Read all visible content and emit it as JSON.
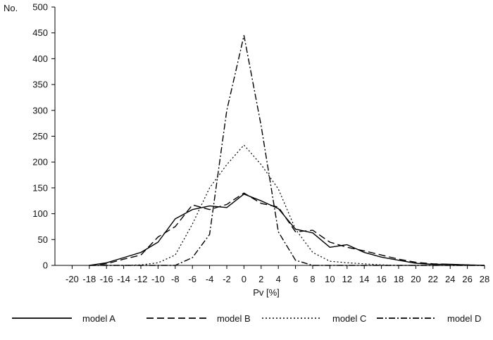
{
  "chart_data": {
    "type": "line",
    "ylabel": "No.",
    "xlabel": "Pv [%]",
    "xlim": [
      -22,
      28
    ],
    "ylim": [
      0,
      500
    ],
    "x_ticks": [
      -20,
      -18,
      -16,
      -14,
      -12,
      -10,
      -8,
      -6,
      -4,
      -2,
      0,
      2,
      4,
      6,
      8,
      10,
      12,
      14,
      16,
      18,
      20,
      22,
      24,
      26,
      28
    ],
    "y_ticks": [
      0,
      50,
      100,
      150,
      200,
      250,
      300,
      350,
      400,
      450,
      500
    ],
    "grid": false,
    "legend_position": "bottom",
    "series": [
      {
        "name": "model A",
        "line_style": "solid",
        "x": [
          -18,
          -16,
          -14,
          -12,
          -10,
          -8,
          -6,
          -4,
          -2,
          0,
          2,
          4,
          6,
          8,
          10,
          12,
          14,
          16,
          18,
          20,
          22,
          24,
          26,
          28
        ],
        "values": [
          0,
          5,
          15,
          25,
          45,
          90,
          108,
          115,
          112,
          138,
          125,
          110,
          70,
          63,
          35,
          40,
          25,
          16,
          10,
          4,
          2,
          2,
          1,
          0
        ]
      },
      {
        "name": "model B",
        "line_style": "dashed",
        "x": [
          -18,
          -16,
          -14,
          -12,
          -10,
          -8,
          -6,
          -4,
          -2,
          0,
          2,
          4,
          6,
          8,
          10,
          12,
          14,
          16,
          18,
          20,
          22,
          24,
          26,
          28
        ],
        "values": [
          0,
          3,
          12,
          20,
          55,
          75,
          117,
          108,
          118,
          140,
          120,
          113,
          65,
          68,
          45,
          35,
          28,
          20,
          12,
          6,
          3,
          2,
          1,
          0
        ]
      },
      {
        "name": "model C",
        "line_style": "dotted",
        "x": [
          -18,
          -16,
          -14,
          -12,
          -10,
          -8,
          -6,
          -4,
          -2,
          0,
          2,
          4,
          6,
          8,
          10,
          12,
          14,
          16,
          18,
          20,
          22,
          24,
          26,
          28
        ],
        "values": [
          0,
          0,
          0,
          1,
          5,
          20,
          80,
          150,
          195,
          233,
          195,
          148,
          70,
          25,
          8,
          5,
          3,
          1,
          0,
          0,
          0,
          0,
          0,
          0
        ]
      },
      {
        "name": "model D",
        "line_style": "dashdot",
        "x": [
          -18,
          -16,
          -14,
          -12,
          -10,
          -8,
          -6,
          -4,
          -2,
          0,
          2,
          4,
          6,
          8,
          10,
          12,
          14,
          16,
          18,
          20,
          22,
          24,
          26,
          28
        ],
        "values": [
          0,
          0,
          0,
          0,
          0,
          0,
          15,
          60,
          300,
          445,
          270,
          65,
          10,
          0,
          0,
          0,
          0,
          0,
          0,
          0,
          0,
          0,
          0,
          0
        ]
      }
    ]
  }
}
